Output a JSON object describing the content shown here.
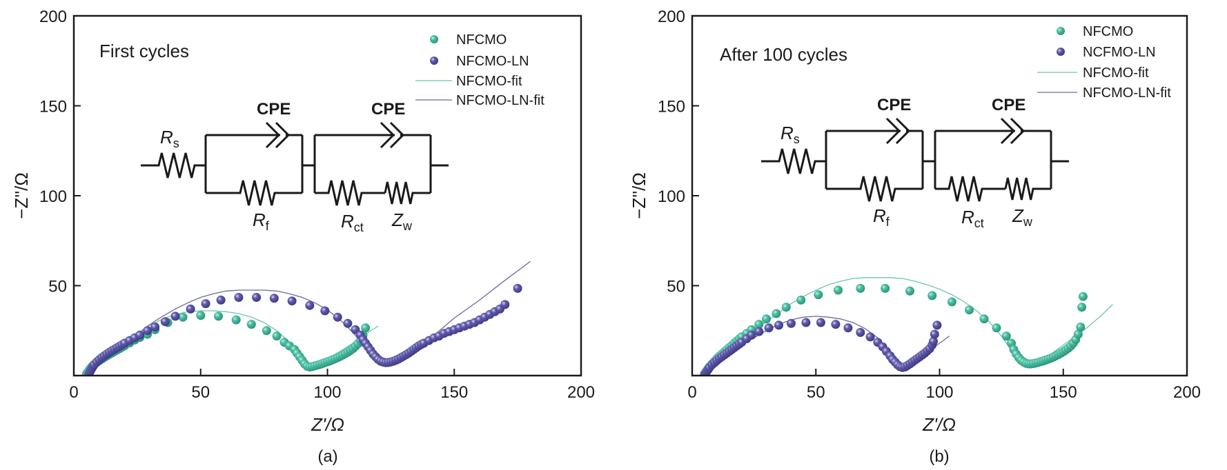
{
  "colors": {
    "NFCMO": "#3fb59a",
    "NFCMO_LN": "#5a559f",
    "NFCMO_fit": "#6cc4ae",
    "NFCMO_LN_fit": "#6b679f",
    "axis": "#1a1a1a"
  },
  "circuit": {
    "rs": "R",
    "rs_sub": "s",
    "rf": "R",
    "rf_sub": "f",
    "rct": "R",
    "rct_sub": "ct",
    "zw": "Z",
    "zw_sub": "w",
    "cpe1": "CPE",
    "cpe2": "CPE"
  },
  "chart_data": [
    {
      "type": "scatter",
      "panel": "(a)",
      "title": "First cycles",
      "xlabel": "Z'/Ω",
      "ylabel": "−Z''/Ω",
      "xlim": [
        0,
        200
      ],
      "ylim": [
        0,
        200
      ],
      "xticks": [
        0,
        50,
        100,
        150,
        200
      ],
      "yticks": [
        50,
        100,
        150,
        200
      ],
      "grid": false,
      "legend_position": "top-right",
      "legend": [
        "NFCMO",
        "NFCMO-LN",
        "NFCMO-fit",
        "NFCMO-LN-fit"
      ],
      "series": [
        {
          "name": "NFCMO",
          "kind": "points",
          "color_key": "NFCMO",
          "x": [
            5,
            5.5,
            6,
            6.5,
            7,
            7.5,
            8,
            9,
            10,
            11,
            12,
            13,
            14,
            15,
            16,
            17,
            18,
            19,
            20,
            22,
            24,
            26,
            29,
            32,
            37,
            43,
            50,
            57,
            64,
            70,
            76,
            80,
            83,
            85,
            87,
            88,
            89,
            90,
            91,
            92,
            93,
            94,
            95,
            96,
            97,
            98,
            99,
            100,
            101,
            102,
            103,
            104,
            105,
            106,
            107,
            108,
            109,
            110,
            111,
            112,
            113,
            114,
            115
          ],
          "y": [
            1,
            2,
            3,
            4,
            4.8,
            5.5,
            6.2,
            7.3,
            8.3,
            9.2,
            10.1,
            11,
            11.8,
            12.6,
            13.4,
            14.2,
            15,
            15.8,
            16.6,
            18.2,
            19.8,
            21.2,
            23,
            25.5,
            29.5,
            32.5,
            33.5,
            33,
            31,
            28.5,
            25,
            22,
            18.5,
            16.5,
            14.5,
            12.5,
            10.5,
            8.5,
            6.5,
            5.2,
            4.8,
            5,
            5.4,
            5.8,
            6.2,
            6.7,
            7.2,
            7.7,
            8.2,
            8.8,
            9.4,
            10,
            10.7,
            11.4,
            12.2,
            13,
            14,
            15,
            16.3,
            17.7,
            19.5,
            22.5,
            26.5
          ]
        },
        {
          "name": "NFCMO-LN",
          "kind": "points",
          "color_key": "NFCMO_LN",
          "x": [
            6,
            6.5,
            7,
            7.5,
            8,
            9,
            10,
            11,
            12,
            13,
            14,
            15,
            16,
            17,
            18,
            19,
            20,
            22,
            24,
            26,
            29,
            32,
            36,
            40,
            46,
            52,
            58,
            65,
            72,
            79,
            86,
            93,
            99,
            104,
            108,
            111,
            113,
            114,
            115,
            116,
            117,
            118,
            119,
            120,
            121,
            122,
            123,
            124,
            125,
            126,
            127,
            128,
            129,
            130,
            131,
            132,
            133,
            134,
            135,
            136,
            137,
            138,
            140,
            142,
            144,
            146,
            148,
            150,
            152,
            154,
            156,
            158,
            160,
            162,
            164,
            166,
            168,
            170,
            175
          ],
          "y": [
            1,
            2.5,
            3.8,
            5,
            6,
            7.5,
            8.8,
            10,
            11,
            12,
            12.9,
            13.8,
            14.6,
            15.5,
            16.3,
            17.1,
            18,
            19.5,
            21,
            22.5,
            25,
            27,
            30,
            33,
            37,
            40,
            42,
            43.5,
            43.5,
            43,
            41.5,
            39,
            36,
            32.5,
            29,
            25.5,
            22.5,
            20,
            18,
            16,
            14,
            12,
            10.5,
            9,
            8,
            7.5,
            7.2,
            7.3,
            7.6,
            8,
            8.6,
            9.2,
            10,
            10.8,
            11.6,
            12.5,
            13.5,
            14.5,
            15.5,
            16.5,
            17.3,
            18,
            19.5,
            21,
            22,
            23.5,
            24.5,
            25.5,
            26.5,
            27.5,
            28.5,
            29.5,
            31,
            32.5,
            34,
            35.5,
            37,
            39.5,
            48.5
          ]
        },
        {
          "name": "NFCMO-fit",
          "kind": "line",
          "color_key": "NFCMO_fit",
          "x": [
            5,
            7,
            10,
            15,
            20,
            25,
            30,
            35,
            40,
            45,
            50,
            55,
            60,
            65,
            70,
            75,
            80,
            84,
            87,
            89,
            91,
            92,
            93,
            95,
            100,
            105,
            110,
            115,
            120
          ],
          "y": [
            0,
            5,
            9,
            13,
            18,
            23,
            28,
            31.5,
            34,
            35.5,
            36,
            36,
            35.5,
            34.5,
            32.5,
            29.5,
            25,
            20,
            15,
            11,
            7,
            5.5,
            5,
            6,
            9.5,
            13.5,
            18,
            23,
            27.5
          ]
        },
        {
          "name": "NFCMO-LN-fit",
          "kind": "line",
          "color_key": "NFCMO_LN_fit",
          "x": [
            6,
            8,
            11,
            15,
            20,
            25,
            30,
            35,
            40,
            45,
            50,
            55,
            60,
            65,
            70,
            75,
            80,
            85,
            90,
            95,
            100,
            105,
            110,
            113,
            116,
            118,
            120,
            122,
            124,
            127,
            130,
            135,
            140,
            145,
            150,
            160,
            170,
            180
          ],
          "y": [
            0,
            5,
            9.5,
            13,
            18,
            23,
            28.5,
            33,
            37,
            40.5,
            43.5,
            45.5,
            47,
            47.5,
            47.5,
            47.5,
            47,
            45.5,
            43.5,
            40.5,
            36.5,
            31,
            24,
            19,
            14,
            11,
            9,
            8,
            8,
            9,
            11,
            15,
            20,
            26,
            32,
            42,
            53,
            63.5
          ]
        }
      ]
    },
    {
      "type": "scatter",
      "panel": "(b)",
      "title": "After 100 cycles",
      "xlabel": "Z'/Ω",
      "ylabel": "−Z''/Ω",
      "xlim": [
        0,
        200
      ],
      "ylim": [
        0,
        200
      ],
      "xticks": [
        0,
        50,
        100,
        150,
        200
      ],
      "yticks": [
        50,
        100,
        150,
        200
      ],
      "grid": false,
      "legend_position": "top-right",
      "legend": [
        "NFCMO",
        "NCFMO-LN",
        "NFCMO-fit",
        "NFCMO-LN-fit"
      ],
      "series": [
        {
          "name": "NFCMO",
          "kind": "points",
          "color_key": "NFCMO",
          "x": [
            5,
            5.5,
            6,
            6.5,
            7,
            8,
            9,
            10,
            11,
            12,
            13,
            14,
            15,
            16,
            17,
            18,
            19,
            20,
            22,
            24,
            27,
            30,
            34,
            38,
            44,
            51,
            59,
            68,
            78,
            88,
            97,
            105,
            112,
            118,
            123,
            127,
            129,
            130,
            131,
            132,
            133,
            134,
            135,
            136,
            137,
            138,
            139,
            140,
            141,
            142,
            143,
            144,
            145,
            146,
            147,
            148,
            149,
            150,
            151,
            152,
            153,
            154,
            155,
            156,
            157,
            157.5,
            158
          ],
          "y": [
            1,
            2,
            3,
            4,
            5,
            6.5,
            8,
            9.5,
            10.8,
            12,
            13.2,
            14.4,
            15.6,
            16.8,
            18,
            19.2,
            20.4,
            21.5,
            23.5,
            25.5,
            28.5,
            31.5,
            34.5,
            38,
            42,
            45,
            47.5,
            48.5,
            48.5,
            47,
            44.5,
            41,
            36.5,
            31.5,
            26.5,
            22,
            18,
            14.5,
            12,
            10,
            8.5,
            7.5,
            6.8,
            6.5,
            6.5,
            6.7,
            7,
            7.4,
            7.8,
            8.2,
            8.7,
            9.2,
            9.7,
            10.3,
            11,
            11.7,
            12.5,
            13.3,
            14.2,
            15.2,
            16.4,
            18,
            20,
            23,
            27,
            38,
            44
          ]
        },
        {
          "name": "NCFMO-LN",
          "kind": "points",
          "color_key": "NFCMO_LN",
          "x": [
            5,
            5.5,
            6,
            6.5,
            7,
            8,
            9,
            10,
            11,
            12,
            13,
            14,
            15,
            16,
            17,
            18,
            19,
            20,
            22,
            24,
            27,
            31,
            35,
            40,
            46,
            52,
            58,
            63,
            68,
            72,
            75,
            77,
            78.5,
            80,
            81,
            82,
            83,
            84,
            85,
            86,
            87,
            88,
            89,
            90,
            91,
            92,
            93,
            94,
            95,
            96,
            97,
            97.5,
            98,
            99
          ],
          "y": [
            0.5,
            1.5,
            2.5,
            3.5,
            4.5,
            6,
            7.2,
            8.4,
            9.5,
            10.5,
            11.5,
            12.5,
            13.5,
            14.5,
            15.5,
            16.5,
            17.5,
            18.5,
            20.5,
            22.5,
            24.5,
            26.5,
            28,
            29,
            29.5,
            29.5,
            28.5,
            26.5,
            24,
            21.5,
            18.5,
            16,
            13.5,
            11,
            9,
            7.5,
            6,
            5,
            4.5,
            4.8,
            5.6,
            6.5,
            7.5,
            8.5,
            9.5,
            10.5,
            11.5,
            12.5,
            13.7,
            15,
            17,
            19,
            23,
            28
          ]
        },
        {
          "name": "NFCMO-fit",
          "kind": "line",
          "color_key": "NFCMO_fit",
          "x": [
            5,
            7,
            10,
            15,
            20,
            25,
            30,
            35,
            40,
            45,
            50,
            55,
            60,
            65,
            70,
            75,
            80,
            85,
            90,
            95,
            100,
            105,
            110,
            115,
            120,
            125,
            128,
            131,
            133,
            135,
            137,
            140,
            145,
            150,
            155,
            160,
            165,
            170
          ],
          "y": [
            0,
            5,
            9.5,
            15,
            20,
            25,
            30,
            35,
            40,
            44,
            47.5,
            50.5,
            52.5,
            54,
            54.5,
            54.5,
            54.5,
            54,
            52.5,
            50.5,
            48,
            45,
            41,
            36,
            30,
            22,
            16,
            10,
            7,
            6,
            6.5,
            8,
            12,
            17,
            22,
            27,
            33,
            39.5
          ]
        },
        {
          "name": "NFCMO-LN-fit",
          "kind": "line",
          "color_key": "NFCMO_LN_fit",
          "x": [
            5,
            7,
            10,
            15,
            20,
            25,
            30,
            35,
            40,
            45,
            50,
            55,
            60,
            65,
            70,
            75,
            78,
            81,
            83,
            85,
            87,
            90,
            95,
            100,
            104
          ],
          "y": [
            0,
            4,
            8,
            12.5,
            17,
            21,
            25,
            28.5,
            31,
            32.5,
            33,
            32.5,
            31.5,
            29.5,
            26,
            21,
            16.5,
            11,
            7,
            5,
            5.5,
            8,
            13,
            18,
            22
          ]
        }
      ]
    }
  ],
  "panels": [
    {
      "title": "First cycles",
      "caption": "(a)",
      "xlabel": "Z'/Ω",
      "ylabel": "−Z''/Ω",
      "xtick_labels": [
        "0",
        "50",
        "100",
        "150",
        "200"
      ],
      "ytick_labels": [
        "50",
        "100",
        "150",
        "200"
      ],
      "legend": [
        "NFCMO",
        "NFCMO-LN",
        "NFCMO-fit",
        "NFCMO-LN-fit"
      ]
    },
    {
      "title": "After 100 cycles",
      "caption": "(b)",
      "xlabel": "Z'/Ω",
      "ylabel": "−Z''/Ω",
      "xtick_labels": [
        "0",
        "50",
        "100",
        "150",
        "200"
      ],
      "ytick_labels": [
        "50",
        "100",
        "150",
        "200"
      ],
      "legend": [
        "NFCMO",
        "NCFMO-LN",
        "NFCMO-fit",
        "NFCMO-LN-fit"
      ]
    }
  ]
}
